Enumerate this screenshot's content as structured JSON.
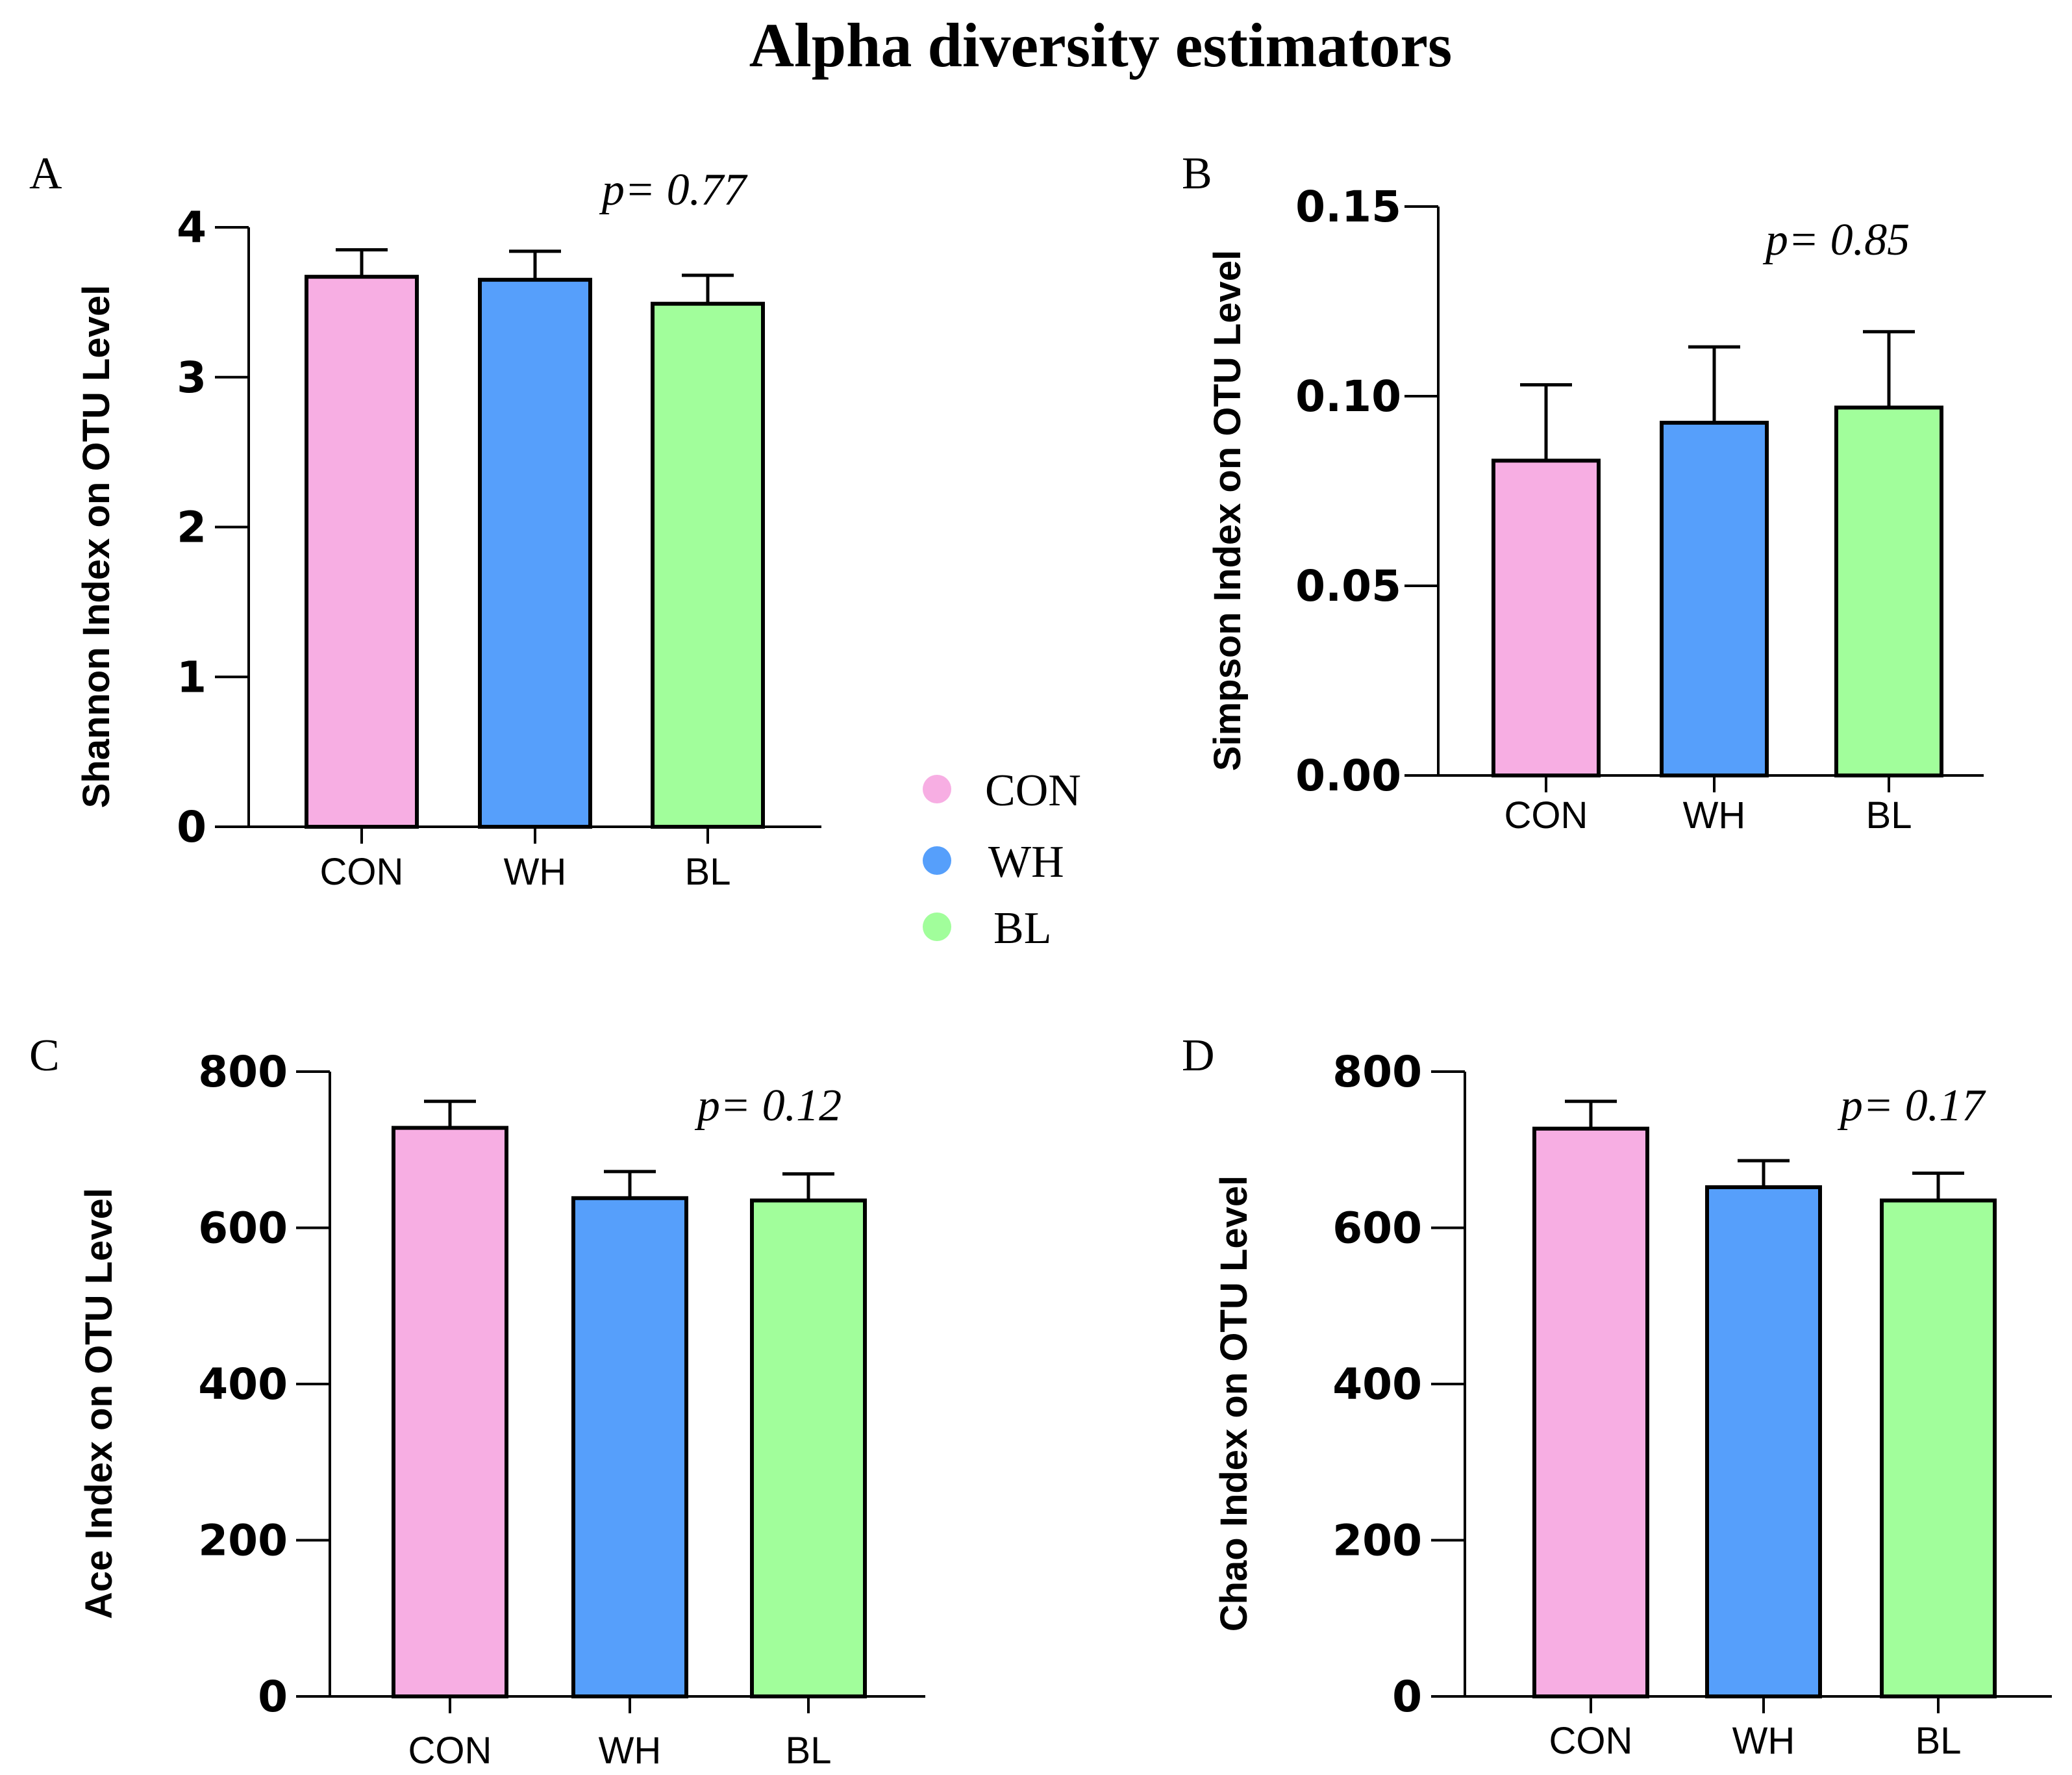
{
  "figure_title": "Alpha diversity estimators",
  "legend": [
    {
      "label": "CON",
      "color": "#F7AEE3"
    },
    {
      "label": "WH",
      "color": "#569FFB"
    },
    {
      "label": "BL",
      "color": "#A1FE9B"
    }
  ],
  "chart_data": [
    {
      "panel": "A",
      "type": "bar",
      "title": "",
      "ylabel": "Shannon Index on OTU Level",
      "categories": [
        "CON",
        "WH",
        "BL"
      ],
      "values": [
        3.67,
        3.65,
        3.49
      ],
      "error_upper": [
        3.85,
        3.84,
        3.68
      ],
      "ylim": [
        0,
        4
      ],
      "yticks": [
        0,
        1,
        2,
        3,
        4
      ],
      "ytick_labels": [
        "0",
        "1",
        "2",
        "3",
        "4"
      ],
      "annotation": "p= 0.77",
      "colors": [
        "#F7AEE3",
        "#569FFB",
        "#A1FE9B"
      ]
    },
    {
      "panel": "B",
      "type": "bar",
      "title": "",
      "ylabel": "Simpson Index on OTU Level",
      "categories": [
        "CON",
        "WH",
        "BL"
      ],
      "values": [
        0.083,
        0.093,
        0.097
      ],
      "error_upper": [
        0.103,
        0.113,
        0.117
      ],
      "ylim": [
        0,
        0.15
      ],
      "yticks": [
        0,
        0.05,
        0.1,
        0.15
      ],
      "ytick_labels": [
        "0.00",
        "0.05",
        "0.10",
        "0.15"
      ],
      "annotation": "p= 0.85",
      "colors": [
        "#F7AEE3",
        "#569FFB",
        "#A1FE9B"
      ]
    },
    {
      "panel": "C",
      "type": "bar",
      "title": "",
      "ylabel": "Ace Index on OTU Level",
      "categories": [
        "CON",
        "WH",
        "BL"
      ],
      "values": [
        728,
        638,
        635
      ],
      "error_upper": [
        762,
        672,
        669
      ],
      "ylim": [
        0,
        800
      ],
      "yticks": [
        0,
        200,
        400,
        600,
        800
      ],
      "ytick_labels": [
        "0",
        "200",
        "400",
        "600",
        "800"
      ],
      "annotation": "p= 0.12",
      "colors": [
        "#F7AEE3",
        "#569FFB",
        "#A1FE9B"
      ]
    },
    {
      "panel": "D",
      "type": "bar",
      "title": "",
      "ylabel": "Chao Index on OTU Level",
      "categories": [
        "CON",
        "WH",
        "BL"
      ],
      "values": [
        727,
        652,
        635
      ],
      "error_upper": [
        762,
        686,
        670
      ],
      "ylim": [
        0,
        800
      ],
      "yticks": [
        0,
        200,
        400,
        600,
        800
      ],
      "ytick_labels": [
        "0",
        "200",
        "400",
        "600",
        "800"
      ],
      "annotation": "p= 0.17",
      "colors": [
        "#F7AEE3",
        "#569FFB",
        "#A1FE9B"
      ]
    }
  ]
}
